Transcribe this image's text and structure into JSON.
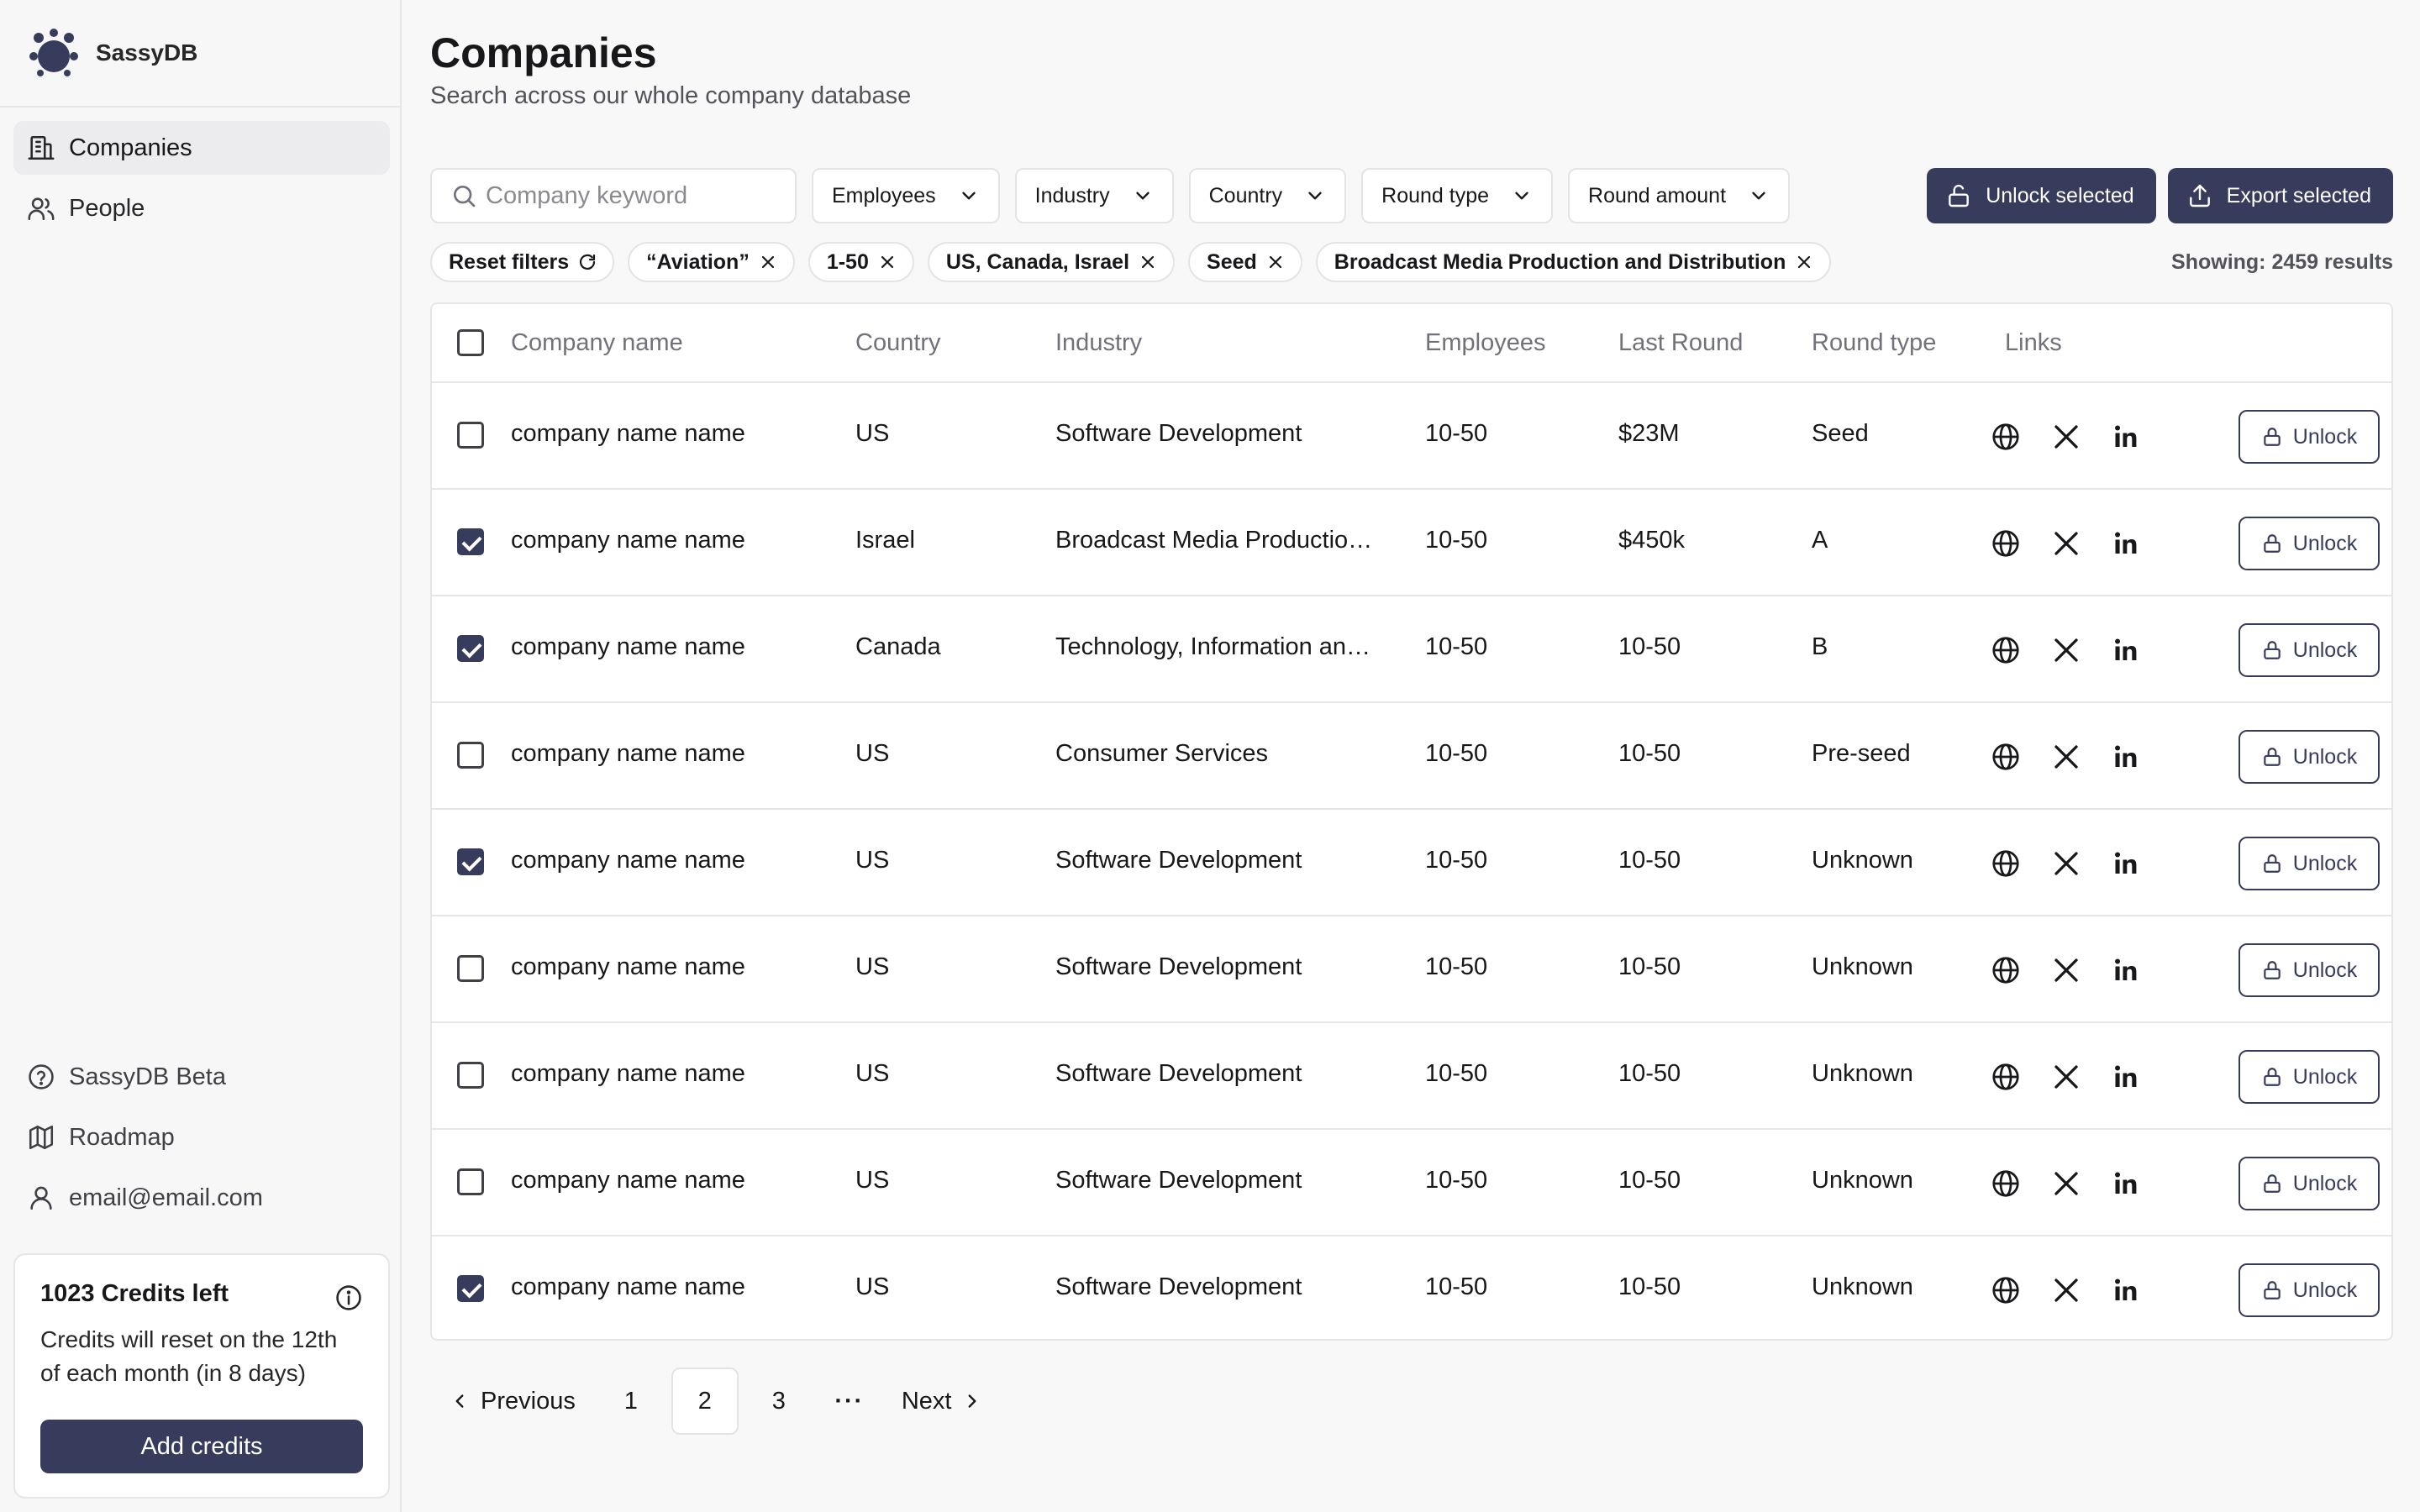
{
  "app": {
    "name": "SassyDB",
    "logo_icon": "sassydb-logo-icon"
  },
  "sidebar": {
    "nav": [
      {
        "label": "Companies",
        "icon": "building-icon",
        "active": true
      },
      {
        "label": "People",
        "icon": "users-icon",
        "active": false
      }
    ],
    "bottom": [
      {
        "label": "SassyDB Beta",
        "icon": "help-circle-icon"
      },
      {
        "label": "Roadmap",
        "icon": "map-icon"
      },
      {
        "label": "email@email.com",
        "icon": "user-icon"
      }
    ],
    "credits": {
      "title": "1023 Credits left",
      "text": "Credits will reset on the 12th of each month (in 8 days)",
      "button": "Add credits",
      "info_icon": "info-icon"
    }
  },
  "header": {
    "title": "Companies",
    "subtitle": "Search across our whole company database"
  },
  "filters": {
    "search_placeholder": "Company keyword",
    "dropdowns": [
      "Employees",
      "Industry",
      "Country",
      "Round type",
      "Round amount"
    ]
  },
  "actions": {
    "unlock_selected": "Unlock selected",
    "export_selected": "Export selected"
  },
  "chips": {
    "reset": "Reset filters",
    "active": [
      "“Aviation”",
      "1-50",
      "US, Canada, Israel",
      "Seed",
      "Broadcast Media Production and Distribution"
    ]
  },
  "results": "Showing: 2459 results",
  "table": {
    "columns": [
      "Company name",
      "Country",
      "Industry",
      "Employees",
      "Last Round",
      "Round type",
      "Links"
    ],
    "unlock_label": "Unlock",
    "link_icons": [
      "globe-icon",
      "x-twitter-icon",
      "linkedin-icon"
    ],
    "rows": [
      {
        "checked": false,
        "name": "company name name",
        "country": "US",
        "industry": "Software Development",
        "employees": "10-50",
        "last_round": "$23M",
        "round_type": "Seed"
      },
      {
        "checked": true,
        "name": "company name name",
        "country": "Israel",
        "industry": "Broadcast Media Productio…",
        "employees": "10-50",
        "last_round": "$450k",
        "round_type": "A"
      },
      {
        "checked": true,
        "name": "company name name",
        "country": "Canada",
        "industry": "Technology, Information an…",
        "employees": "10-50",
        "last_round": "10-50",
        "round_type": "B"
      },
      {
        "checked": false,
        "name": "company name name",
        "country": "US",
        "industry": "Consumer Services",
        "employees": "10-50",
        "last_round": "10-50",
        "round_type": "Pre-seed"
      },
      {
        "checked": true,
        "name": "company name name",
        "country": "US",
        "industry": "Software Development",
        "employees": "10-50",
        "last_round": "10-50",
        "round_type": "Unknown"
      },
      {
        "checked": false,
        "name": "company name name",
        "country": "US",
        "industry": "Software Development",
        "employees": "10-50",
        "last_round": "10-50",
        "round_type": "Unknown"
      },
      {
        "checked": false,
        "name": "company name name",
        "country": "US",
        "industry": "Software Development",
        "employees": "10-50",
        "last_round": "10-50",
        "round_type": "Unknown"
      },
      {
        "checked": false,
        "name": "company name name",
        "country": "US",
        "industry": "Software Development",
        "employees": "10-50",
        "last_round": "10-50",
        "round_type": "Unknown"
      },
      {
        "checked": true,
        "name": "company name name",
        "country": "US",
        "industry": "Software Development",
        "employees": "10-50",
        "last_round": "10-50",
        "round_type": "Unknown"
      }
    ]
  },
  "pagination": {
    "previous": "Previous",
    "next": "Next",
    "pages": [
      "1",
      "2",
      "3"
    ],
    "current": "2",
    "ellipsis": "···"
  },
  "colors": {
    "primary": "#383c5c",
    "background": "#f8f8f8",
    "border": "#e6e6e8"
  }
}
